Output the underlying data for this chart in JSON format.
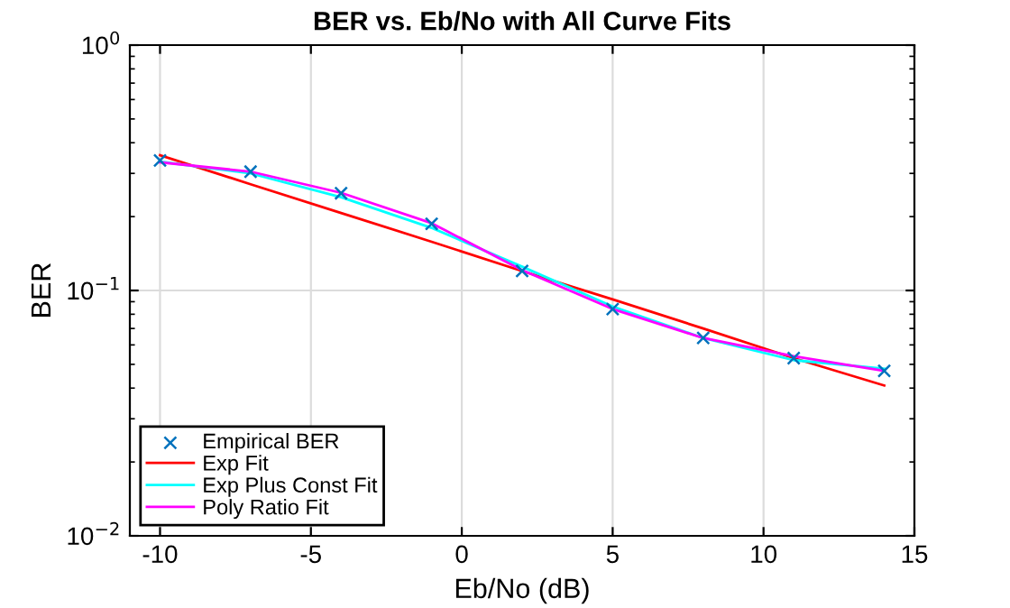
{
  "chart_data": {
    "type": "line",
    "title": "BER vs. Eb/No with All Curve Fits",
    "xlabel": "Eb/No (dB)",
    "ylabel": "BER",
    "x": [
      -10,
      -7,
      -4,
      -1,
      2,
      5,
      8,
      11,
      14
    ],
    "series": [
      {
        "name": "Empirical BER",
        "type": "scatter",
        "marker": "cross",
        "color": "#0072bd",
        "values": [
          0.339,
          0.305,
          0.249,
          0.187,
          0.12,
          0.084,
          0.064,
          0.053,
          0.047
        ]
      },
      {
        "name": "Exp Fit",
        "color": "#ff0000",
        "values": [
          0.356,
          0.271,
          0.207,
          0.158,
          0.12,
          0.092,
          0.07,
          0.053,
          0.041
        ]
      },
      {
        "name": "Exp Plus Const Fit",
        "color": "#00ffff",
        "values": [
          0.335,
          0.3,
          0.24,
          0.18,
          0.125,
          0.086,
          0.064,
          0.052,
          0.048
        ]
      },
      {
        "name": "Poly Ratio Fit",
        "color": "#ff00ff",
        "values": [
          0.333,
          0.305,
          0.25,
          0.188,
          0.121,
          0.084,
          0.064,
          0.054,
          0.047
        ]
      }
    ],
    "log": "y",
    "xlim": [
      -11,
      15
    ],
    "ylim": [
      0.01,
      1
    ],
    "xticks": [
      -10,
      -5,
      0,
      5,
      10,
      15
    ],
    "yticks": [
      {
        "value": 0.01,
        "label": "10$^{−2}$"
      },
      {
        "value": 0.1,
        "label": "10$^{−1}$"
      },
      {
        "value": 1,
        "label": "10$^{0}$"
      }
    ],
    "grid": true,
    "legend": "bottom left"
  }
}
